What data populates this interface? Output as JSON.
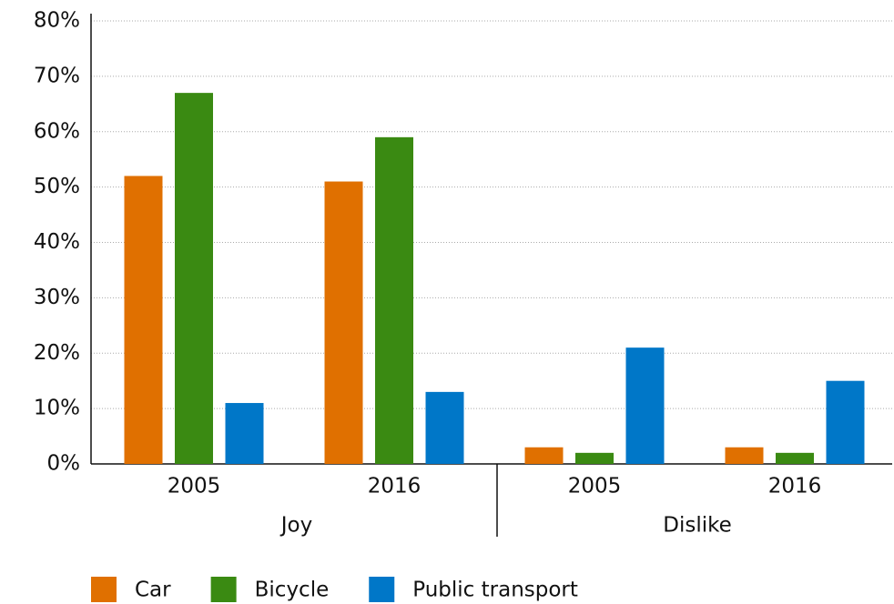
{
  "chart_data": {
    "type": "bar",
    "categories": [
      "2005",
      "2016",
      "2005",
      "2016"
    ],
    "groups": [
      "Joy",
      "Dislike"
    ],
    "series": [
      {
        "name": "Car",
        "color": "#e07000",
        "values": [
          52,
          51,
          3,
          3
        ]
      },
      {
        "name": "Bicycle",
        "color": "#3a8a12",
        "values": [
          67,
          59,
          2,
          2
        ]
      },
      {
        "name": "Public transport",
        "color": "#0077c8",
        "values": [
          11,
          13,
          21,
          15
        ]
      }
    ],
    "ylim": [
      0,
      80
    ],
    "yticks": [
      {
        "value": 0,
        "label": "0%"
      },
      {
        "value": 10,
        "label": "10%"
      },
      {
        "value": 20,
        "label": "20%"
      },
      {
        "value": 30,
        "label": "30%"
      },
      {
        "value": 40,
        "label": "40%"
      },
      {
        "value": 50,
        "label": "50%"
      },
      {
        "value": 60,
        "label": "60%"
      },
      {
        "value": 70,
        "label": "70%"
      },
      {
        "value": 80,
        "label": "80%"
      }
    ],
    "grid": true,
    "legend": "bottom"
  }
}
